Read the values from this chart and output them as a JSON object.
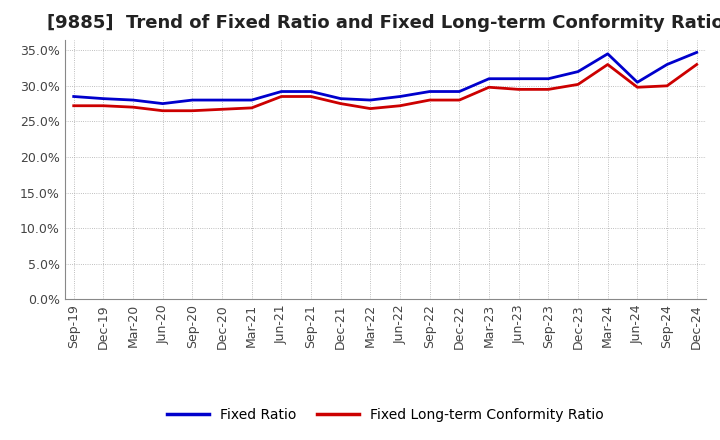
{
  "title": "[9885]  Trend of Fixed Ratio and Fixed Long-term Conformity Ratio",
  "x_labels": [
    "Sep-19",
    "Dec-19",
    "Mar-20",
    "Jun-20",
    "Sep-20",
    "Dec-20",
    "Mar-21",
    "Jun-21",
    "Sep-21",
    "Dec-21",
    "Mar-22",
    "Jun-22",
    "Sep-22",
    "Dec-22",
    "Mar-23",
    "Jun-23",
    "Sep-23",
    "Dec-23",
    "Mar-24",
    "Jun-24",
    "Sep-24",
    "Dec-24"
  ],
  "fixed_ratio": [
    28.5,
    28.2,
    28.0,
    27.5,
    28.0,
    28.0,
    28.0,
    29.2,
    29.2,
    28.2,
    28.0,
    28.5,
    29.2,
    29.2,
    31.0,
    31.0,
    31.0,
    32.0,
    34.5,
    30.5,
    33.0,
    34.7
  ],
  "fixed_lt_ratio": [
    27.2,
    27.2,
    27.0,
    26.5,
    26.5,
    26.7,
    26.9,
    28.5,
    28.5,
    27.5,
    26.8,
    27.2,
    28.0,
    28.0,
    29.8,
    29.5,
    29.5,
    30.2,
    33.0,
    29.8,
    30.0,
    33.0
  ],
  "fixed_ratio_color": "#0000cc",
  "fixed_lt_ratio_color": "#cc0000",
  "ylim": [
    0.0,
    36.5
  ],
  "yticks": [
    0.0,
    5.0,
    10.0,
    15.0,
    20.0,
    25.0,
    30.0,
    35.0
  ],
  "background_color": "#ffffff",
  "grid_color": "#aaaaaa",
  "legend_fixed_ratio": "Fixed Ratio",
  "legend_fixed_lt_ratio": "Fixed Long-term Conformity Ratio",
  "title_fontsize": 13,
  "tick_fontsize": 9,
  "legend_fontsize": 10
}
